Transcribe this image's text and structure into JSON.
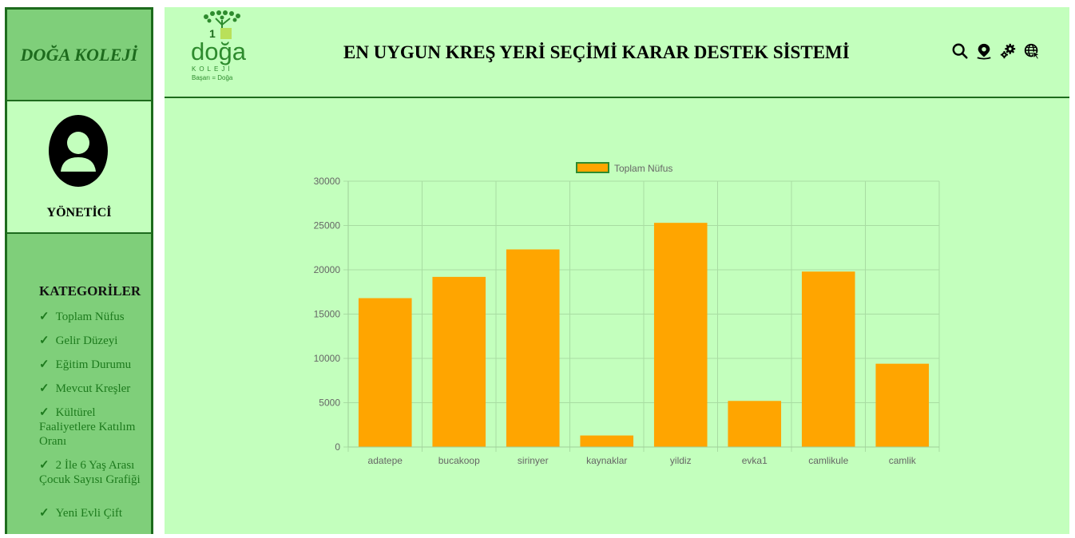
{
  "sidebar": {
    "brand": "DOĞA KOLEJİ",
    "role": "YÖNETİCİ",
    "categories_title": "KATEGORİLER",
    "items": [
      {
        "label": "Toplam Nüfus"
      },
      {
        "label": "Gelir Düzeyi"
      },
      {
        "label": "Eğitim Durumu"
      },
      {
        "label": "Mevcut Kreşler"
      },
      {
        "label": "Kültürel Faaliyetlere Katılım Oranı"
      },
      {
        "label": "2 İle 6 Yaş Arası Çocuk Sayısı Grafiği"
      },
      {
        "label": "Yeni Evli Çift"
      }
    ],
    "check_glyph": "✓"
  },
  "header": {
    "title": "EN UYGUN KREŞ YERİ SEÇİMİ KARAR DESTEK SİSTEMİ",
    "logo": {
      "name": "doğa",
      "sub": "KOLEJİ",
      "tagline": "Başarı = Doğa"
    },
    "icons": [
      "search-icon",
      "location-pin-icon",
      "gears-icon",
      "globe-cursor-icon"
    ]
  },
  "colors": {
    "bar": "#ffa500",
    "legend_border": "#2e8b2e",
    "grid": "#a8dca2",
    "background": "#c3ffbd",
    "sidebar": "#7fcf7a",
    "accent": "#1d6b1d"
  },
  "chart_data": {
    "type": "bar",
    "categories": [
      "adatepe",
      "bucakoop",
      "sirinyer",
      "kaynaklar",
      "yildiz",
      "evka1",
      "camlikule",
      "camlik"
    ],
    "series": [
      {
        "name": "Toplam Nüfus",
        "values": [
          16800,
          19200,
          22300,
          1300,
          25300,
          5200,
          19800,
          9400
        ]
      }
    ],
    "ylim": [
      0,
      30000
    ],
    "yticks": [
      0,
      5000,
      10000,
      15000,
      20000,
      25000,
      30000
    ],
    "legend": "top-center",
    "grid": true
  }
}
